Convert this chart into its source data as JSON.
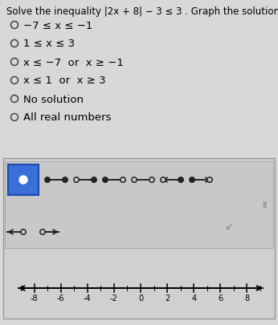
{
  "title_line1": "Solve the inequality |2x + 8| − 3 ≤ 3 . Graph the solution.",
  "options": [
    "−7 ≤ x ≤ −1",
    "1 ≤ x ≤ 3",
    "x ≤ −7  or  x ≥ −1",
    "x ≤ 1  or  x ≥ 3",
    "No solution",
    "All real numbers"
  ],
  "bg_color": "#d8d8d8",
  "panel_bg": "#c8c8c8",
  "tool_bg": "#c8c8c8",
  "selected_box_color": "#3a6fd8",
  "number_line_min": -9,
  "number_line_max": 9,
  "tick_labels": [
    -8,
    -6,
    -4,
    -2,
    0,
    2,
    4,
    6,
    8
  ],
  "title_fontsize": 8.5,
  "option_fontsize": 9.5
}
